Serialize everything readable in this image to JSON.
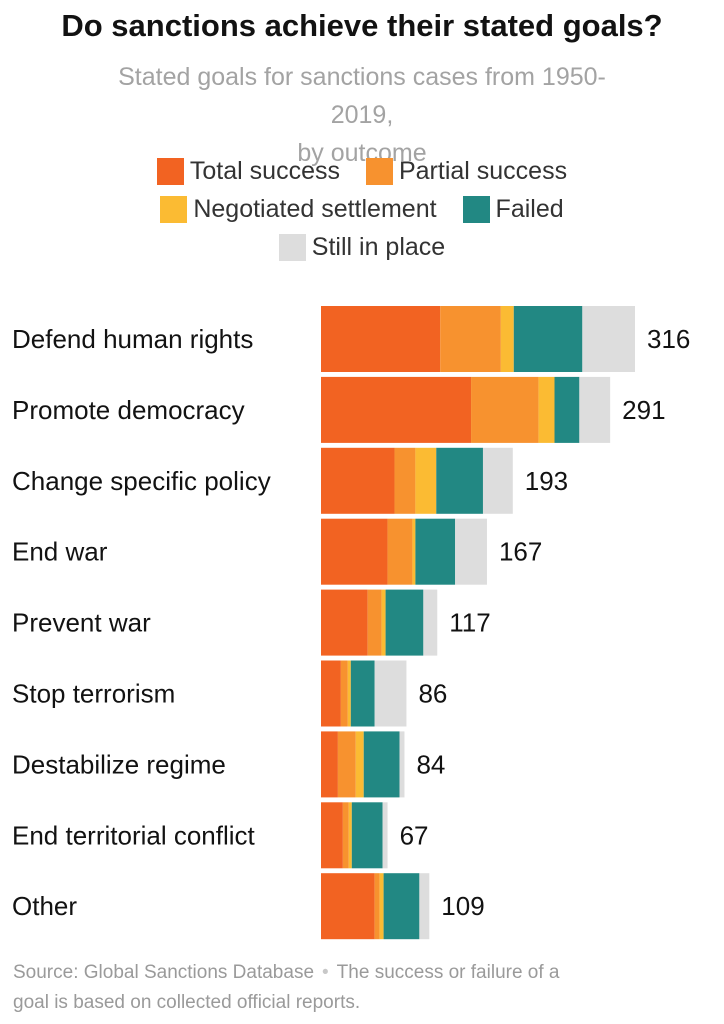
{
  "title": "Do sanctions achieve their stated goals?",
  "subtitle_line1": "Stated goals for sanctions cases from 1950-2019,",
  "subtitle_line2": "by outcome",
  "footer": {
    "source": "Source: Global Sanctions Database",
    "separator": "•",
    "note_line1": "The success or failure of a",
    "note_line2": "goal is based on collected official reports."
  },
  "chart_data": {
    "type": "bar",
    "orientation": "horizontal",
    "stacked": true,
    "legend_position": "top-center",
    "grid": false,
    "xlim": [
      0,
      316
    ],
    "categories": [
      "Defend human rights",
      "Promote democracy",
      "Change specific policy",
      "End war",
      "Prevent war",
      "Stop terrorism",
      "Destabilize regime",
      "End territorial conflict",
      "Other"
    ],
    "series": [
      {
        "name": "Total success",
        "color": "#f26322",
        "values": [
          120,
          151,
          74,
          67,
          47,
          20,
          17,
          22,
          54
        ]
      },
      {
        "name": "Partial success",
        "color": "#f7922f",
        "values": [
          61,
          68,
          21,
          25,
          14,
          7,
          18,
          6,
          5
        ]
      },
      {
        "name": "Negotiated settlement",
        "color": "#fbbb33",
        "values": [
          13,
          16,
          21,
          3,
          4,
          3,
          8,
          3,
          4
        ]
      },
      {
        "name": "Failed",
        "color": "#228883",
        "values": [
          69,
          25,
          47,
          40,
          38,
          24,
          36,
          31,
          36
        ]
      },
      {
        "name": "Still in place",
        "color": "#dddddd",
        "values": [
          53,
          31,
          30,
          32,
          14,
          32,
          5,
          5,
          10
        ]
      }
    ],
    "totals": [
      316,
      291,
      193,
      167,
      117,
      86,
      84,
      67,
      109
    ]
  }
}
